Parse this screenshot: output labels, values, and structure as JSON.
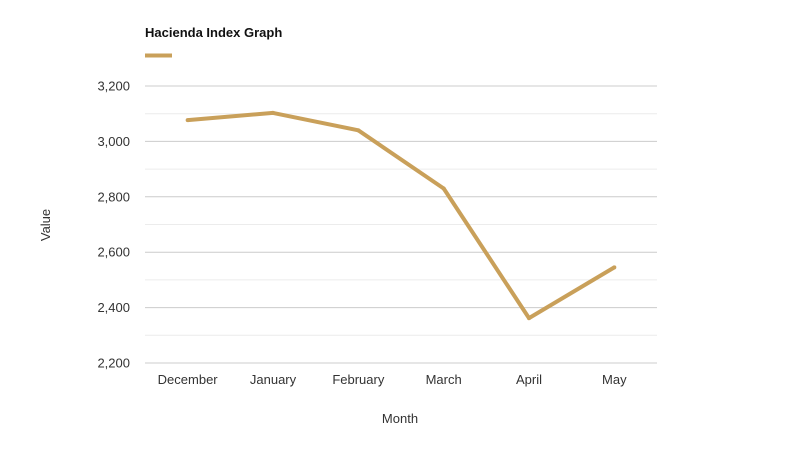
{
  "chart_data": {
    "type": "line",
    "title": "Hacienda Index Graph",
    "xlabel": "Month",
    "ylabel": "Value",
    "categories": [
      "December",
      "January",
      "February",
      "March",
      "April",
      "May"
    ],
    "series": [
      {
        "values": [
          3077,
          3103,
          3040,
          2830,
          2362,
          2545
        ]
      }
    ],
    "ylim": [
      2200,
      3200
    ],
    "yticks": [
      2200,
      2400,
      2600,
      2800,
      3000,
      3200
    ],
    "ytick_labels": [
      "2,200",
      "2,400",
      "2,600",
      "2,800",
      "3,000",
      "3,200"
    ],
    "grid": true,
    "legend": "top-left",
    "colors": {
      "series": "#c9a05a",
      "grid_major": "#cccccc",
      "grid_minor": "#ececec",
      "text": "#333333"
    }
  }
}
